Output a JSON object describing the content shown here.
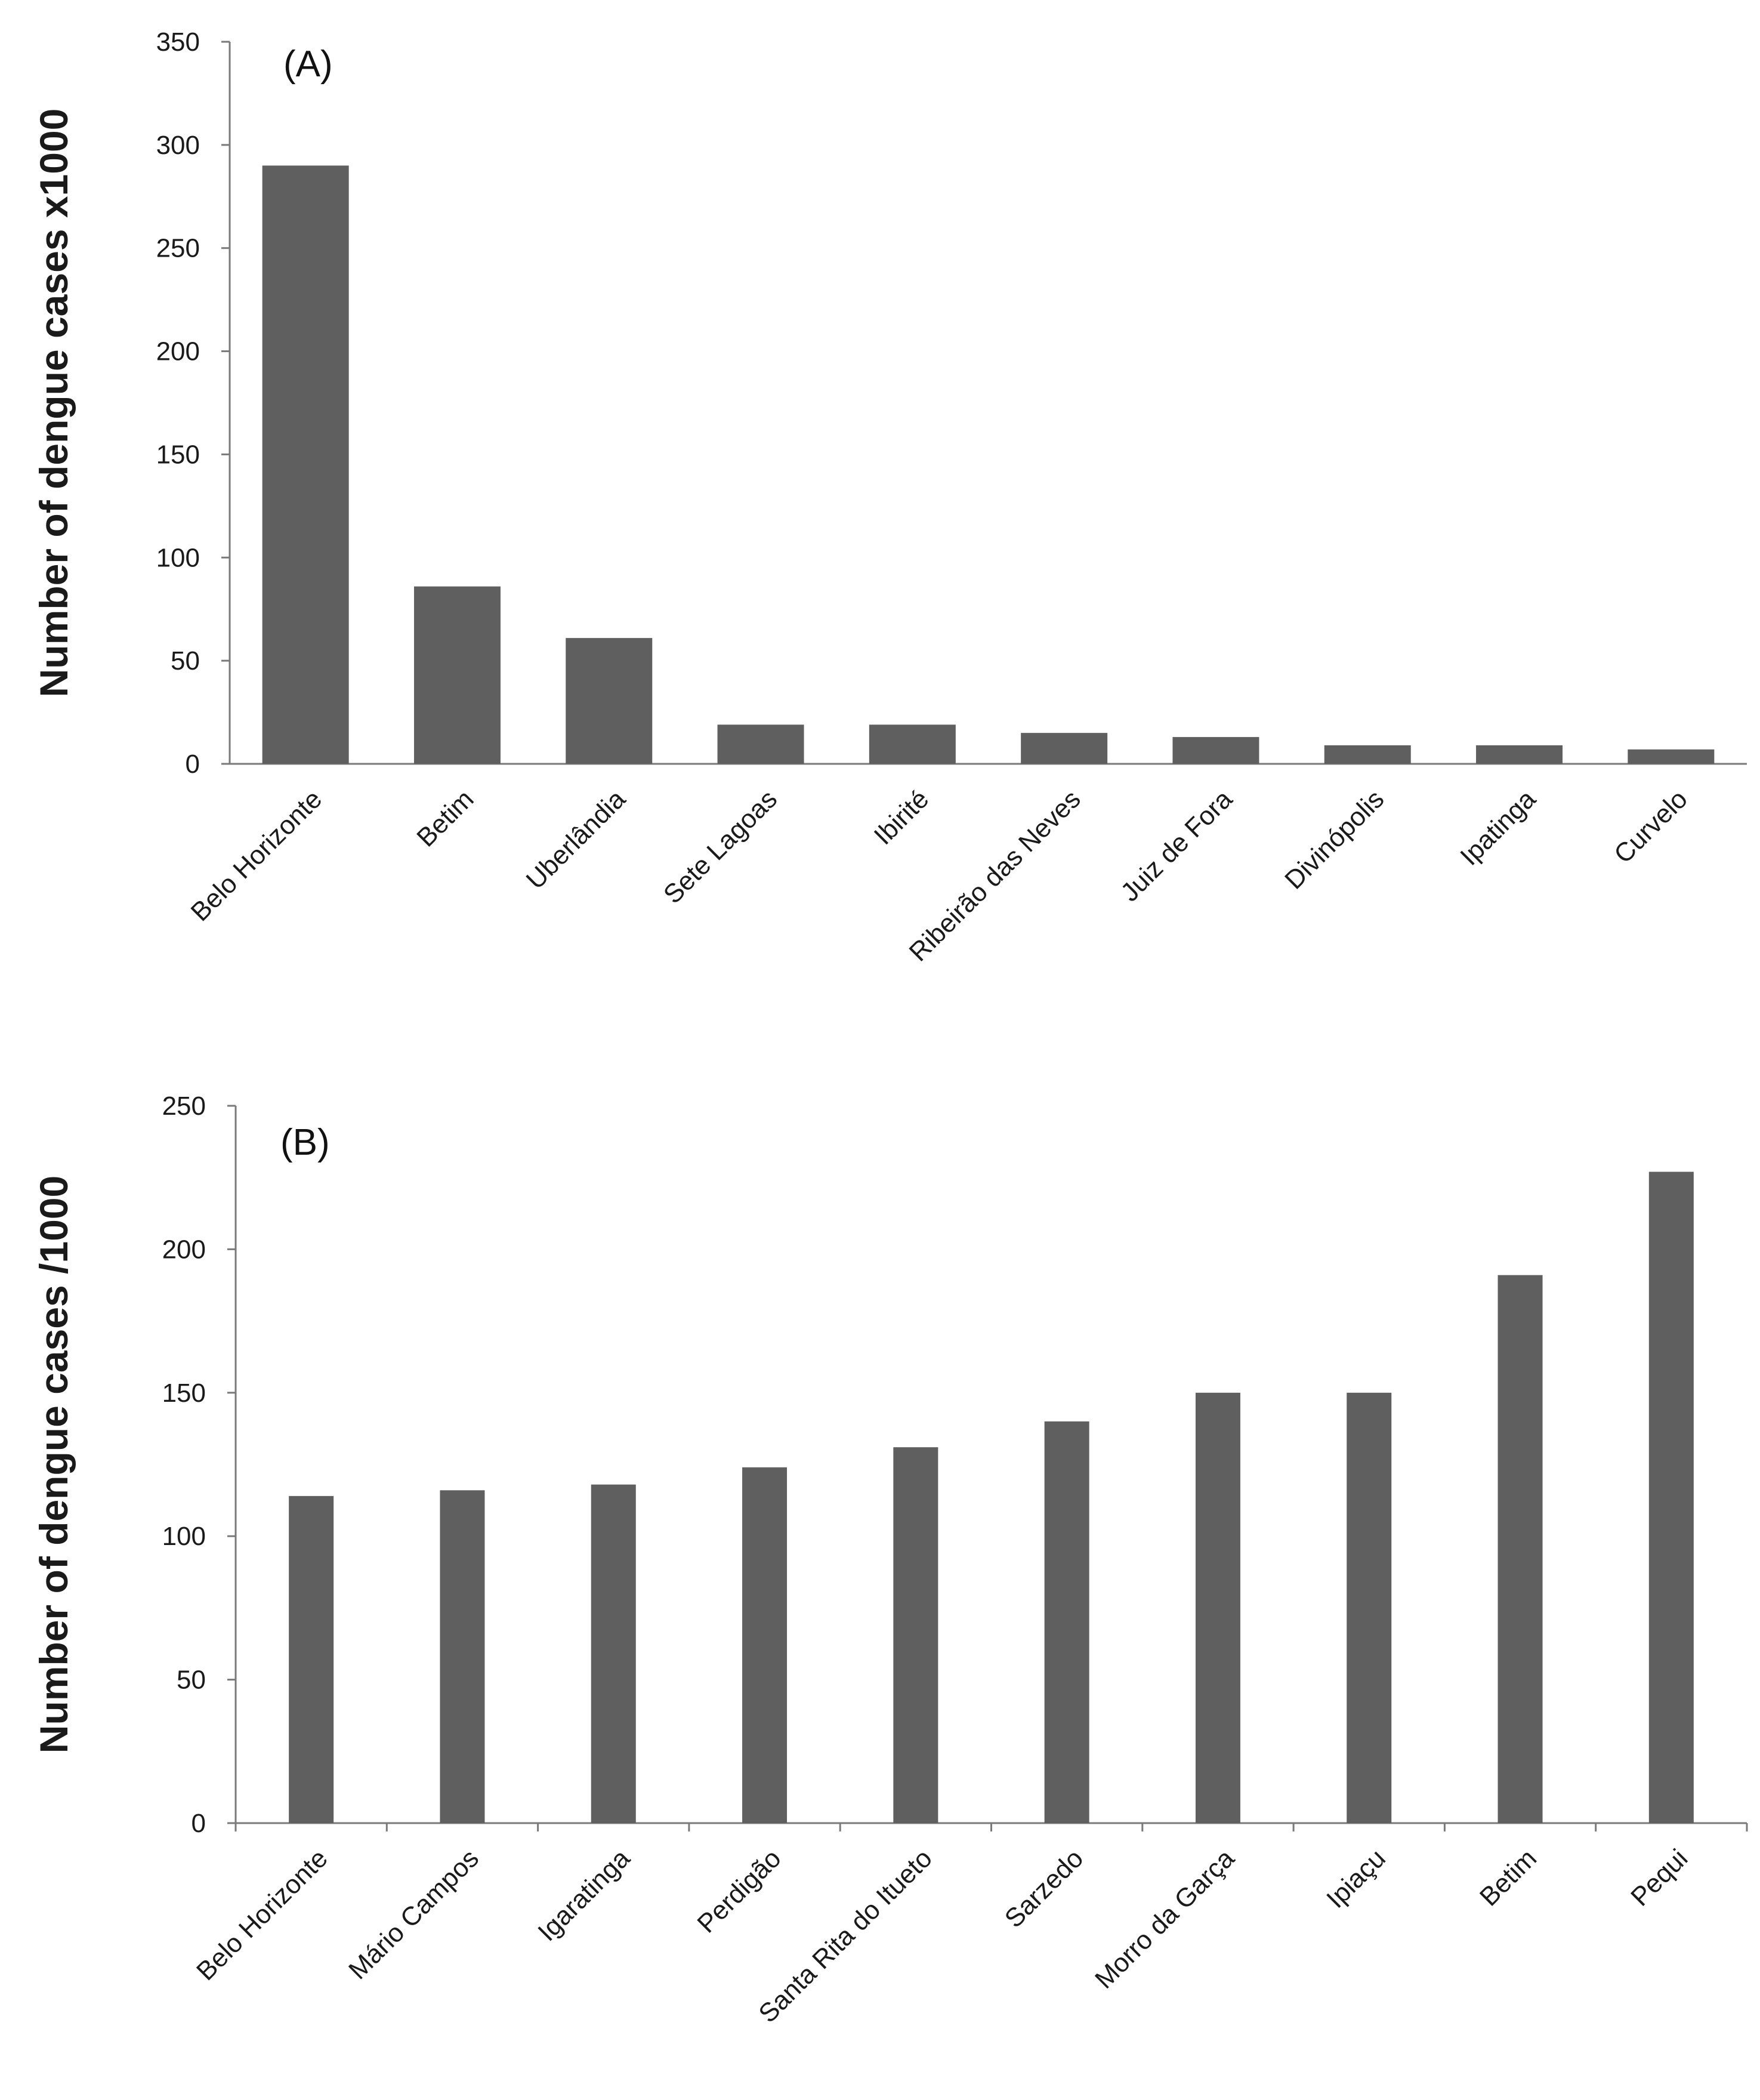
{
  "chart_data": [
    {
      "type": "bar",
      "panel_label": "(A)",
      "ylabel": "Number of dengue cases x1000",
      "xlabel": "",
      "ylim": [
        0,
        350
      ],
      "yticks": [
        "0",
        "50",
        "100",
        "150",
        "200",
        "250",
        "300",
        "350"
      ],
      "categories": [
        "Belo Horizonte",
        "Betim",
        "Uberlândia",
        "Sete Lagoas",
        "Ibirité",
        "Ribeirão das Neves",
        "Juiz de Fora",
        "Divinópolis",
        "Ipatinga",
        "Curvelo"
      ],
      "values": [
        290,
        86,
        61,
        19,
        19,
        15,
        13,
        9,
        9,
        7
      ],
      "grid": false,
      "bar_color": "#5f5f5f"
    },
    {
      "type": "bar",
      "panel_label": "(B)",
      "ylabel": "Number of dengue cases /1000",
      "xlabel": "",
      "ylim": [
        0,
        250
      ],
      "yticks": [
        "0",
        "50",
        "100",
        "150",
        "200",
        "250"
      ],
      "categories": [
        "Belo Horizonte",
        "Mário Campos",
        "Igaratinga",
        "Perdigão",
        "Santa Rita do Itueto",
        "Sarzedo",
        "Morro da Garça",
        "Ipiaçu",
        "Betim",
        "Pequi"
      ],
      "values": [
        114,
        116,
        118,
        124,
        131,
        140,
        150,
        150,
        191,
        227
      ],
      "grid": false,
      "bar_color": "#5f5f5f"
    }
  ]
}
